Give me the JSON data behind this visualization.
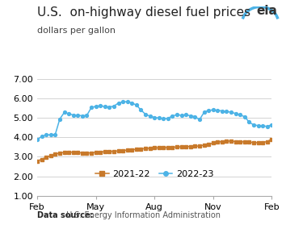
{
  "title": "U.S.  on-highway diesel fuel prices",
  "subtitle": "dollars per gallon",
  "xlabel_ticks": [
    "Feb",
    "May",
    "Aug",
    "Nov",
    "Feb"
  ],
  "ylim": [
    1.0,
    7.0
  ],
  "yticks": [
    1.0,
    2.0,
    3.0,
    4.0,
    5.0,
    6.0,
    7.0
  ],
  "ytick_labels": [
    "1.00",
    "2.00",
    "3.00",
    "4.00",
    "5.00",
    "6.00",
    "7.00"
  ],
  "data_source_bold": "Data source:",
  "data_source_rest": " U.S. Energy Information Administration",
  "series": {
    "2021-22": {
      "color": "#c8792a",
      "marker": "s",
      "y": [
        2.78,
        2.87,
        2.97,
        3.06,
        3.14,
        3.19,
        3.22,
        3.24,
        3.23,
        3.21,
        3.2,
        3.19,
        3.2,
        3.22,
        3.24,
        3.26,
        3.27,
        3.28,
        3.3,
        3.32,
        3.34,
        3.36,
        3.38,
        3.4,
        3.42,
        3.44,
        3.45,
        3.46,
        3.47,
        3.48,
        3.49,
        3.5,
        3.51,
        3.52,
        3.53,
        3.54,
        3.55,
        3.6,
        3.65,
        3.7,
        3.75,
        3.78,
        3.8,
        3.8,
        3.78,
        3.77,
        3.76,
        3.75,
        3.73,
        3.72,
        3.73,
        3.78,
        3.9
      ]
    },
    "2022-23": {
      "color": "#4db3e6",
      "marker": "o",
      "y": [
        3.88,
        4.04,
        4.12,
        4.13,
        4.14,
        4.93,
        5.27,
        5.21,
        5.14,
        5.13,
        5.1,
        5.12,
        5.52,
        5.59,
        5.61,
        5.58,
        5.55,
        5.6,
        5.75,
        5.81,
        5.83,
        5.76,
        5.65,
        5.4,
        5.18,
        5.08,
        5.02,
        4.98,
        4.96,
        4.97,
        5.1,
        5.15,
        5.13,
        5.15,
        5.1,
        5.06,
        4.9,
        5.28,
        5.38,
        5.4,
        5.38,
        5.35,
        5.33,
        5.28,
        5.22,
        5.15,
        5.05,
        4.78,
        4.63,
        4.6,
        4.58,
        4.56,
        4.64
      ]
    }
  },
  "background_color": "#ffffff",
  "grid_color": "#cccccc",
  "title_fontsize": 11,
  "subtitle_fontsize": 8,
  "tick_fontsize": 8,
  "legend_fontsize": 8,
  "source_fontsize": 7,
  "eia_color": "#4db3e6",
  "xtick_positions": [
    0,
    13,
    26,
    39,
    52
  ]
}
